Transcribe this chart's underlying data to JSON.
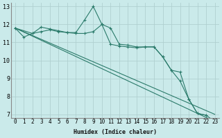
{
  "xlabel": "Humidex (Indice chaleur)",
  "background_color": "#caeaea",
  "grid_color": "#b0d0d0",
  "line_color": "#2a7a6a",
  "xlim": [
    -0.5,
    23.5
  ],
  "ylim": [
    6.8,
    13.2
  ],
  "yticks": [
    7,
    8,
    9,
    10,
    11,
    12,
    13
  ],
  "xticks": [
    0,
    1,
    2,
    3,
    4,
    5,
    6,
    7,
    8,
    9,
    10,
    11,
    12,
    13,
    14,
    15,
    16,
    17,
    18,
    19,
    20,
    21,
    22,
    23
  ],
  "lines": [
    {
      "x": [
        0,
        1,
        2,
        3,
        4,
        5,
        6,
        7,
        8,
        9,
        10,
        11,
        12,
        13,
        14,
        15,
        16,
        17,
        18,
        19,
        20,
        21,
        22,
        23
      ],
      "y": [
        11.8,
        11.3,
        11.5,
        11.85,
        11.75,
        11.65,
        11.55,
        11.55,
        12.25,
        13.0,
        12.0,
        11.8,
        10.9,
        10.85,
        10.75,
        10.75,
        10.75,
        10.2,
        9.45,
        8.85,
        7.85,
        7.05,
        6.95,
        6.6
      ],
      "marker": "+"
    },
    {
      "x": [
        0,
        2,
        3,
        4,
        5,
        6,
        7,
        8,
        9,
        10,
        11,
        12,
        13,
        14,
        15,
        16,
        17,
        18,
        19,
        20,
        21,
        22
      ],
      "y": [
        11.8,
        11.5,
        11.6,
        11.7,
        11.6,
        11.55,
        11.5,
        11.5,
        11.6,
        12.0,
        10.9,
        10.8,
        10.75,
        10.7,
        10.75,
        10.75,
        10.2,
        9.45,
        9.35,
        7.85,
        7.05,
        6.95
      ],
      "marker": "+"
    },
    {
      "x": [
        0,
        23
      ],
      "y": [
        11.8,
        7.0
      ],
      "marker": null
    },
    {
      "x": [
        0,
        23
      ],
      "y": [
        11.8,
        6.6
      ],
      "marker": null
    }
  ]
}
